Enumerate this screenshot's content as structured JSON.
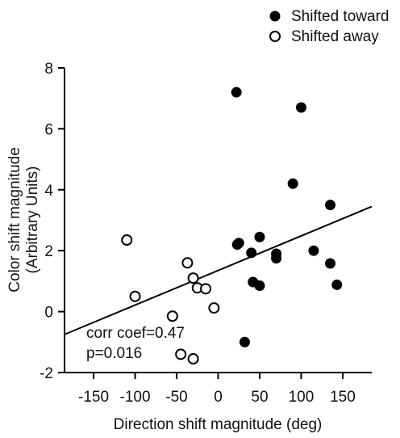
{
  "chart_data": {
    "type": "scatter",
    "title": "",
    "xlabel": "Direction shift magnitude (deg)",
    "ylabel": "Color shift magnitude",
    "ylabel_sub": "(Arbitrary Units)",
    "xlim": [
      -185,
      185
    ],
    "ylim": [
      -2,
      8
    ],
    "xticks": [
      -150,
      -100,
      -50,
      0,
      50,
      100,
      150
    ],
    "yticks": [
      -2,
      0,
      2,
      4,
      6,
      8
    ],
    "grid": false,
    "legend_position": "top-right",
    "series": [
      {
        "name": "Shifted toward",
        "marker": "filled-circle",
        "color": "#000000",
        "points": [
          {
            "x": 22,
            "y": 7.2
          },
          {
            "x": 100,
            "y": 6.7
          },
          {
            "x": 90,
            "y": 4.2
          },
          {
            "x": 135,
            "y": 3.5
          },
          {
            "x": 23,
            "y": 2.2
          },
          {
            "x": 25,
            "y": 2.25
          },
          {
            "x": 50,
            "y": 2.45
          },
          {
            "x": 40,
            "y": 1.93
          },
          {
            "x": 70,
            "y": 1.9
          },
          {
            "x": 70,
            "y": 1.75
          },
          {
            "x": 115,
            "y": 2.0
          },
          {
            "x": 135,
            "y": 1.58
          },
          {
            "x": 42,
            "y": 0.97
          },
          {
            "x": 50,
            "y": 0.85
          },
          {
            "x": 143,
            "y": 0.88
          },
          {
            "x": 32,
            "y": -1.0
          }
        ]
      },
      {
        "name": "Shifted away",
        "marker": "open-circle",
        "color": "#000000",
        "points": [
          {
            "x": -110,
            "y": 2.35
          },
          {
            "x": -37,
            "y": 1.6
          },
          {
            "x": -30,
            "y": 1.1
          },
          {
            "x": -25,
            "y": 0.78
          },
          {
            "x": -15,
            "y": 0.75
          },
          {
            "x": -100,
            "y": 0.5
          },
          {
            "x": -5,
            "y": 0.12
          },
          {
            "x": -55,
            "y": -0.15
          },
          {
            "x": -45,
            "y": -1.4
          },
          {
            "x": -30,
            "y": -1.55
          }
        ]
      }
    ],
    "regression_line": {
      "x1": -185,
      "y1": -0.75,
      "x2": 185,
      "y2": 3.45
    },
    "annotations": [
      {
        "text": "corr coef=0.47"
      },
      {
        "text": "p=0.016"
      }
    ]
  }
}
